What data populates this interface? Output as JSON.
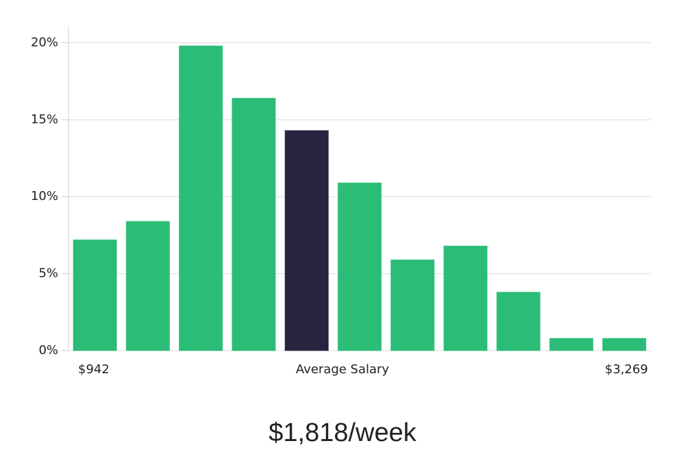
{
  "chart_data": {
    "type": "bar",
    "categories": [
      "$942",
      null,
      null,
      null,
      null,
      null,
      null,
      null,
      null,
      null,
      "$3,269"
    ],
    "values": [
      7.2,
      8.4,
      19.8,
      16.4,
      14.3,
      10.9,
      5.9,
      6.8,
      3.8,
      0.8,
      0.8
    ],
    "colors": [
      "#2bbd77",
      "#2bbd77",
      "#2bbd77",
      "#2bbd77",
      "#28233f",
      "#2bbd77",
      "#2bbd77",
      "#2bbd77",
      "#2bbd77",
      "#2bbd77",
      "#2bbd77"
    ],
    "x_label": "Average Salary",
    "summary": "$1,818/week",
    "ylim": [
      0,
      21
    ],
    "yticks": [
      {
        "value": 0,
        "label": "0%"
      },
      {
        "value": 5,
        "label": "5%"
      },
      {
        "value": 10,
        "label": "10%"
      },
      {
        "value": 15,
        "label": "15%"
      },
      {
        "value": 20,
        "label": "20%"
      }
    ],
    "grid": true
  }
}
